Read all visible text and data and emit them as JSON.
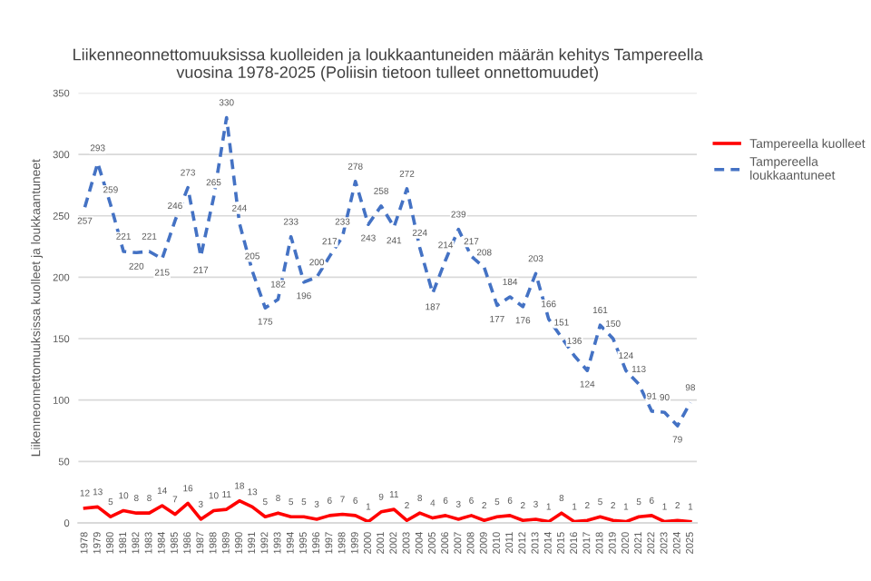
{
  "chart_data": {
    "type": "line",
    "title": "Liikenneonnettomuuksissa kuolleiden ja loukkaantuneiden määrän kehitys Tampereella\nvuosina 1978-2025 (Poliisin tietoon tulleet onnettomuudet)",
    "ylabel": "Liikenneonnettomuuksissa kuolleet ja loukkaantuneet",
    "categories": [
      "1978",
      "1979",
      "1980",
      "1981",
      "1982",
      "1983",
      "1984",
      "1985",
      "1986",
      "1987",
      "1988",
      "1989",
      "1990",
      "1991",
      "1992",
      "1993",
      "1994",
      "1995",
      "1996",
      "1997",
      "1998",
      "1999",
      "2000",
      "2001",
      "2002",
      "2003",
      "2004",
      "2005",
      "2006",
      "2007",
      "2008",
      "2009",
      "2010",
      "2011",
      "2012",
      "2013",
      "2014",
      "2015",
      "2016",
      "2017",
      "2018",
      "2019",
      "2020",
      "2021",
      "2022",
      "2023",
      "2024",
      "2025"
    ],
    "series": [
      {
        "name": "Tampereella kuolleet",
        "color": "#ff0000",
        "line_style": "solid",
        "values": [
          12,
          13,
          5,
          10,
          8,
          8,
          14,
          7,
          16,
          3,
          10,
          11,
          18,
          13,
          5,
          8,
          5,
          5,
          3,
          6,
          7,
          6,
          1,
          9,
          11,
          2,
          8,
          4,
          6,
          3,
          6,
          2,
          5,
          6,
          2,
          3,
          1,
          8,
          1,
          2,
          5,
          2,
          1,
          5,
          6,
          1,
          2,
          1
        ]
      },
      {
        "name": "Tampereella\nloukkaantuneet",
        "color": "#4472c4",
        "line_style": "dashed",
        "values": [
          257,
          293,
          259,
          221,
          220,
          221,
          215,
          246,
          273,
          217,
          265,
          330,
          244,
          205,
          175,
          182,
          233,
          196,
          200,
          217,
          233,
          278,
          243,
          258,
          241,
          272,
          224,
          187,
          214,
          239,
          217,
          208,
          177,
          184,
          176,
          203,
          166,
          151,
          136,
          124,
          161,
          150,
          124,
          113,
          91,
          90,
          79,
          98
        ]
      }
    ],
    "ylim": [
      0,
      350
    ],
    "yticks": [
      0,
      50,
      100,
      150,
      200,
      250,
      300,
      350
    ],
    "grid": "y",
    "legend": "right",
    "data_labels": true,
    "marker": "none"
  }
}
